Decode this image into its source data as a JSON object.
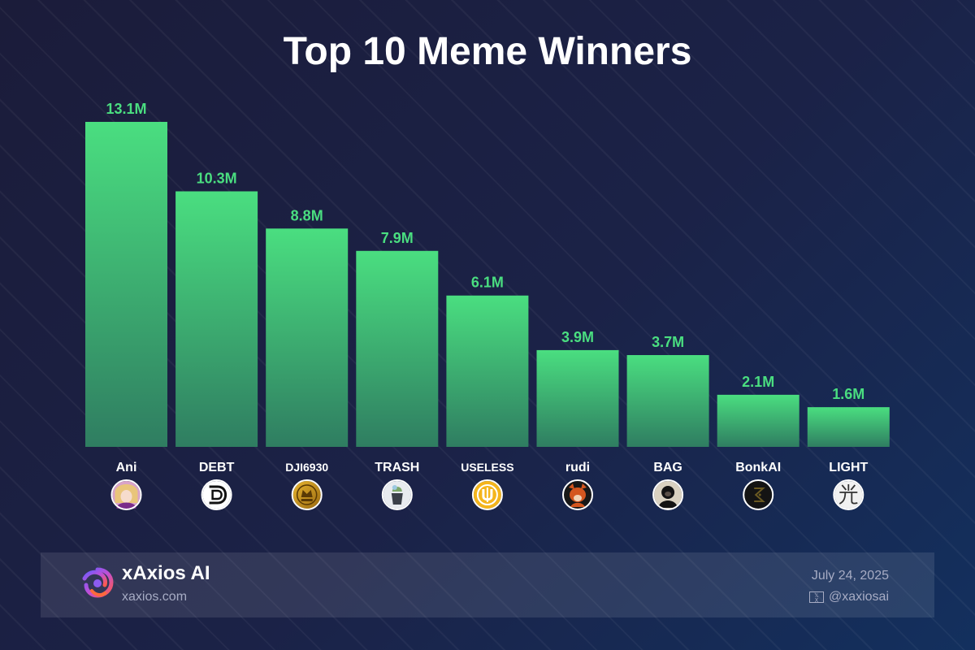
{
  "chart_data": {
    "type": "bar",
    "title": "Top 10 Meme Winners",
    "xlabel": "",
    "ylabel": "",
    "categories": [
      "Ani",
      "DEBT",
      "DJI6930",
      "TRASH",
      "USELESS",
      "rudi",
      "BAG",
      "BonkAI",
      "LIGHT"
    ],
    "values": [
      13.1,
      10.3,
      8.8,
      7.9,
      6.1,
      3.9,
      3.7,
      2.1,
      1.6
    ],
    "value_labels": [
      "13.1M",
      "10.3M",
      "8.8M",
      "7.9M",
      "6.1M",
      "3.9M",
      "3.7M",
      "2.1M",
      "1.6M"
    ],
    "ylim": [
      0,
      13.1
    ],
    "grid": false,
    "legend": "none",
    "bar_color_top": "#4ade80",
    "bar_color_bottom": "#2f7d61",
    "value_label_color": "#4ade80",
    "token_icons": [
      "anime-girl-avatar-icon",
      "debt-d-logo-icon",
      "gold-coin-icon",
      "trash-can-icon",
      "useless-u-coin-icon",
      "red-panda-avatar-icon",
      "gorilla-avatar-icon",
      "bonkai-logo-icon",
      "light-kanji-icon"
    ]
  },
  "footer": {
    "brand_name": "xAxios AI",
    "brand_url": "xaxios.com",
    "date": "July 24, 2025",
    "handle": "@xaxiosai",
    "handle_icon": "x-social-icon"
  },
  "colors": {
    "label": "#ffffff",
    "muted": "#a7acc4"
  }
}
